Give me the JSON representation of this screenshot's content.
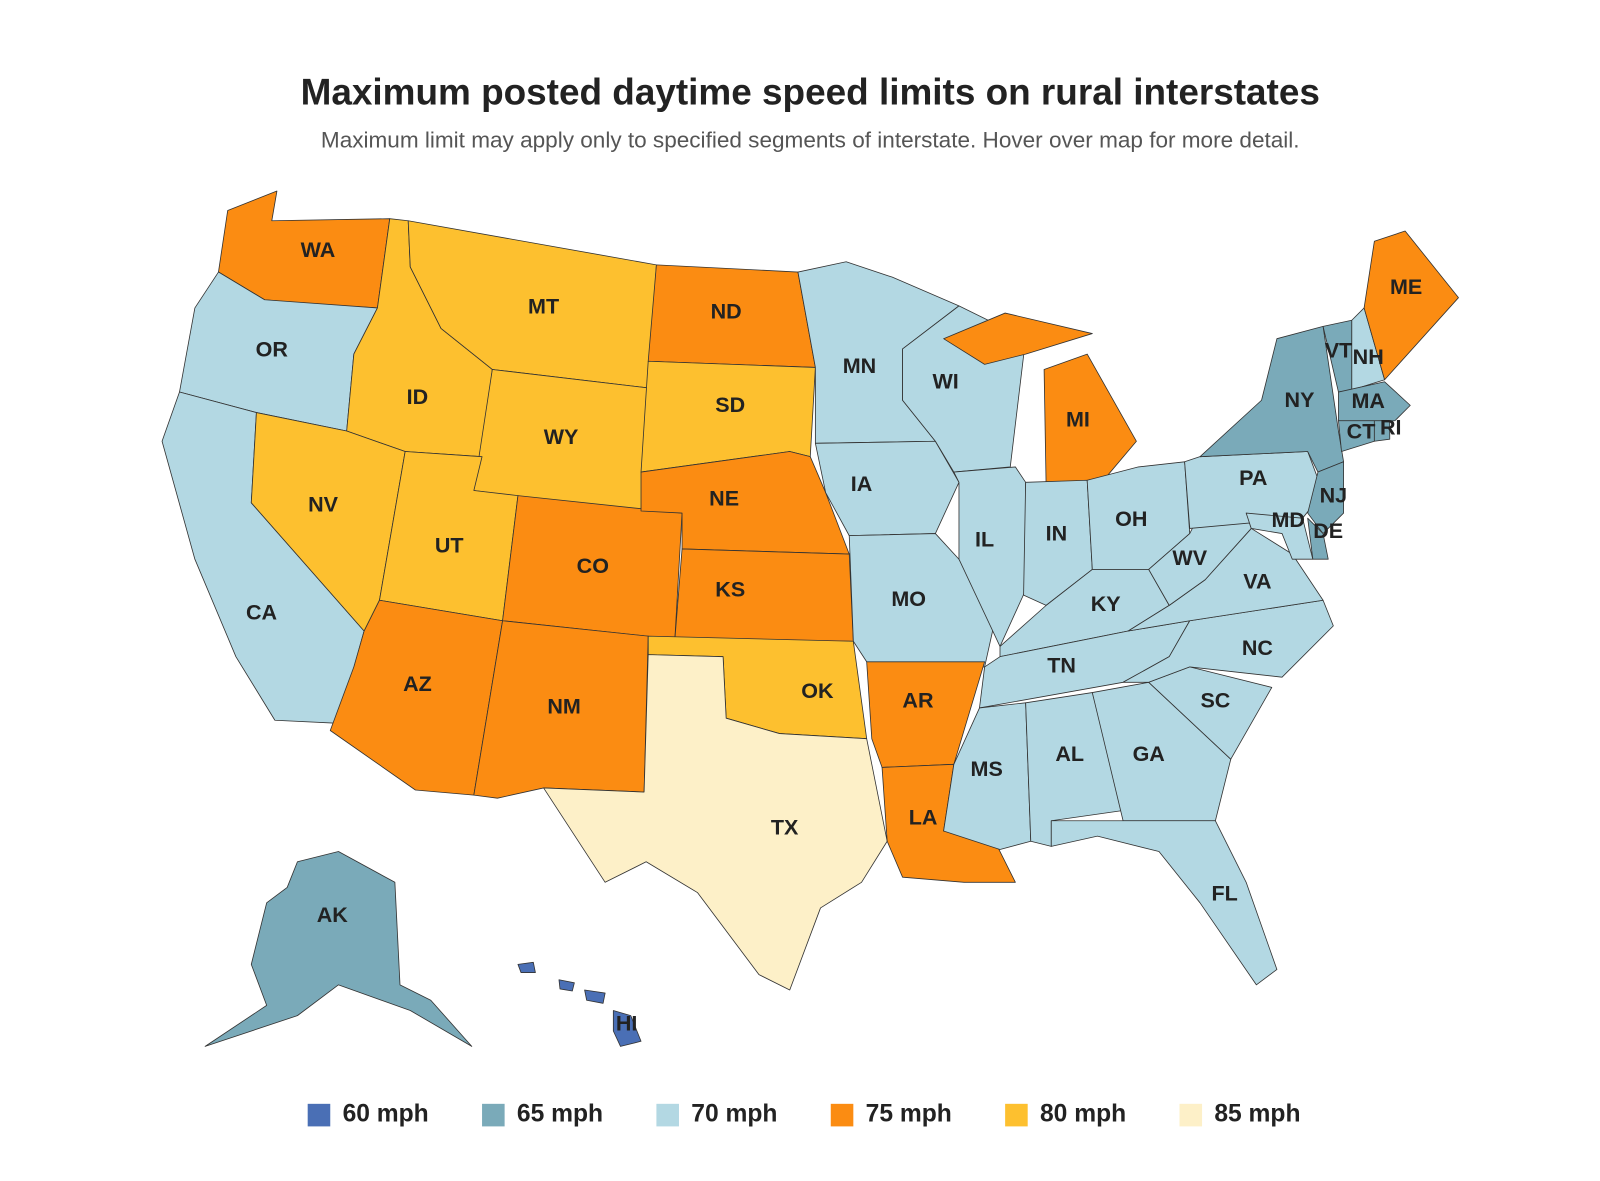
{
  "title": "Maximum posted daytime speed limits on rural interstates",
  "subtitle": "Maximum limit may apply only to specified segments of interstate. Hover over map for more detail.",
  "legend": [
    {
      "value": 60,
      "label": "60 mph",
      "color": "#4a6fb5"
    },
    {
      "value": 65,
      "label": "65 mph",
      "color": "#7aaab9"
    },
    {
      "value": 70,
      "label": "70 mph",
      "color": "#b3d8e3"
    },
    {
      "value": 75,
      "label": "75 mph",
      "color": "#fb8c12"
    },
    {
      "value": 80,
      "label": "80 mph",
      "color": "#fdc02f"
    },
    {
      "value": 85,
      "label": "85 mph",
      "color": "#fdf0c8"
    }
  ],
  "states": [
    {
      "label": "WA",
      "value": 75
    },
    {
      "label": "OR",
      "value": 70
    },
    {
      "label": "CA",
      "value": 70
    },
    {
      "label": "ID",
      "value": 80
    },
    {
      "label": "NV",
      "value": 80
    },
    {
      "label": "MT",
      "value": 80
    },
    {
      "label": "WY",
      "value": 80
    },
    {
      "label": "UT",
      "value": 80
    },
    {
      "label": "CO",
      "value": 75
    },
    {
      "label": "AZ",
      "value": 75
    },
    {
      "label": "NM",
      "value": 75
    },
    {
      "label": "ND",
      "value": 75
    },
    {
      "label": "SD",
      "value": 80
    },
    {
      "label": "NE",
      "value": 75
    },
    {
      "label": "KS",
      "value": 75
    },
    {
      "label": "OK",
      "value": 80
    },
    {
      "label": "TX",
      "value": 85
    },
    {
      "label": "MN",
      "value": 70
    },
    {
      "label": "IA",
      "value": 70
    },
    {
      "label": "MO",
      "value": 70
    },
    {
      "label": "AR",
      "value": 75
    },
    {
      "label": "LA",
      "value": 75
    },
    {
      "label": "WI",
      "value": 70
    },
    {
      "label": "IL",
      "value": 70
    },
    {
      "label": "MI",
      "value": 75
    },
    {
      "label": "IN",
      "value": 70
    },
    {
      "label": "OH",
      "value": 70
    },
    {
      "label": "KY",
      "value": 70
    },
    {
      "label": "TN",
      "value": 70
    },
    {
      "label": "MS",
      "value": 70
    },
    {
      "label": "AL",
      "value": 70
    },
    {
      "label": "GA",
      "value": 70
    },
    {
      "label": "FL",
      "value": 70
    },
    {
      "label": "SC",
      "value": 70
    },
    {
      "label": "NC",
      "value": 70
    },
    {
      "label": "VA",
      "value": 70
    },
    {
      "label": "WV",
      "value": 70
    },
    {
      "label": "PA",
      "value": 70
    },
    {
      "label": "NY",
      "value": 65
    },
    {
      "label": "VT",
      "value": 65
    },
    {
      "label": "NH",
      "value": 70
    },
    {
      "label": "ME",
      "value": 75
    },
    {
      "label": "MA",
      "value": 65
    },
    {
      "label": "CT",
      "value": 65
    },
    {
      "label": "RI",
      "value": 65
    },
    {
      "label": "NJ",
      "value": 65
    },
    {
      "label": "DE",
      "value": 65
    },
    {
      "label": "MD",
      "value": 70
    },
    {
      "label": "AK",
      "value": 65
    },
    {
      "label": "HI",
      "value": 60
    }
  ]
}
